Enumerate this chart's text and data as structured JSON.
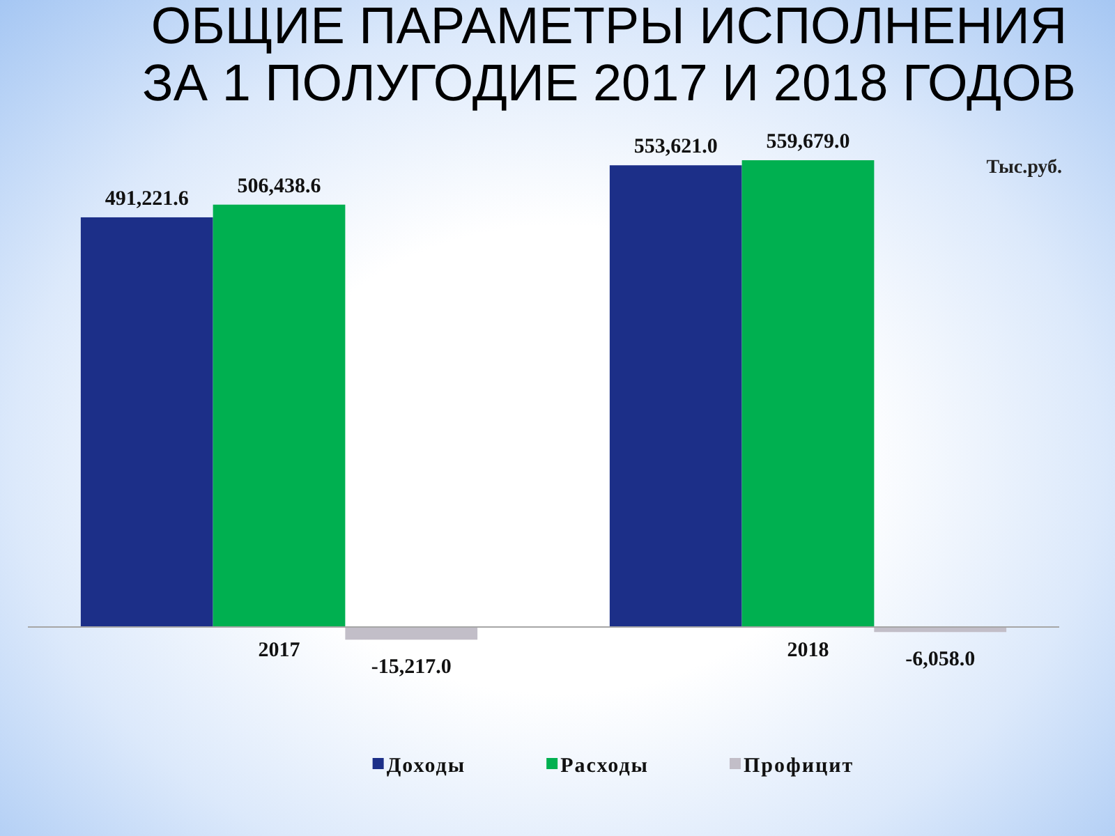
{
  "chart_data": {
    "type": "bar",
    "title": "ОБЩИЕ ПАРАМЕТРЫ ИСПОЛНЕНИЯ\nЗА 1 ПОЛУГОДИЕ 2017 И 2018 ГОДОВ",
    "categories": [
      "2017",
      "2018"
    ],
    "series": [
      {
        "name": "Доходы",
        "color": "#1c2f88",
        "values": [
          491221.6,
          553621.0
        ],
        "value_labels": [
          "491,221.6",
          "553,621.0"
        ]
      },
      {
        "name": "Расходы",
        "color": "#00b050",
        "values": [
          506438.6,
          559679.0
        ],
        "value_labels": [
          "506,438.6",
          "559,679.0"
        ]
      },
      {
        "name": "Профицит",
        "color": "#c2bec8",
        "values": [
          -15217.0,
          -6058.0
        ],
        "value_labels": [
          "-15,217.0",
          "-6,058.0"
        ]
      }
    ],
    "legend": "bottom",
    "tick_labels": "x",
    "annotations": [
      "Тыс.руб."
    ]
  }
}
